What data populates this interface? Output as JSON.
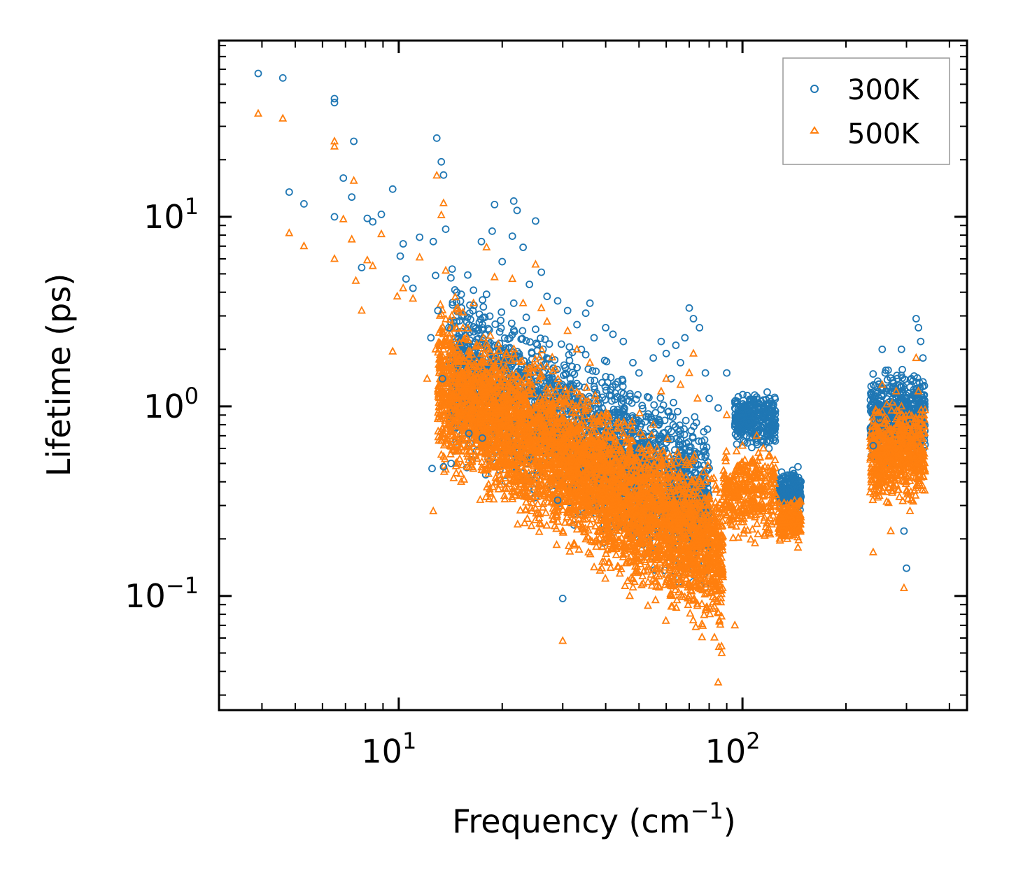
{
  "chart_data": {
    "type": "scatter",
    "xscale": "log",
    "yscale": "log",
    "xlim": [
      3.0,
      450.0
    ],
    "ylim": [
      0.025,
      85.0
    ],
    "xlabel": {
      "main": "Frequency (cm",
      "sup": "−1",
      "close": ")"
    },
    "ylabel": "Lifetime (ps)",
    "x_ticks": [
      {
        "value": 10,
        "base": "10",
        "exp": "1"
      },
      {
        "value": 100,
        "base": "10",
        "exp": "2"
      }
    ],
    "y_ticks": [
      {
        "value": 0.1,
        "base": "10",
        "exp": "−1"
      },
      {
        "value": 1,
        "base": "10",
        "exp": "0"
      },
      {
        "value": 10,
        "base": "10",
        "exp": "1"
      }
    ],
    "legend_position": "top-right",
    "series": [
      {
        "name": "300K",
        "marker": "circle",
        "color": "#1f77b4",
        "points": [
          [
            3.9,
            57
          ],
          [
            4.6,
            54
          ],
          [
            4.8,
            13.5
          ],
          [
            5.3,
            11.7
          ],
          [
            6.5,
            42
          ],
          [
            6.5,
            40
          ],
          [
            6.9,
            16
          ],
          [
            7.3,
            12.7
          ],
          [
            7.4,
            25
          ],
          [
            6.5,
            10
          ],
          [
            8.1,
            9.8
          ],
          [
            8.4,
            9.4
          ],
          [
            8.9,
            10.3
          ],
          [
            9.6,
            14
          ],
          [
            10.3,
            7.2
          ],
          [
            10.1,
            6.2
          ],
          [
            7.8,
            5.4
          ],
          [
            11.5,
            7.8
          ],
          [
            12.9,
            26
          ],
          [
            13.3,
            19.5
          ],
          [
            13.5,
            16.6
          ],
          [
            12.6,
            7.4
          ],
          [
            13.7,
            8.6
          ],
          [
            11.0,
            4.2
          ],
          [
            10.5,
            4.7
          ],
          [
            12.8,
            4.9
          ],
          [
            14.3,
            5.3
          ],
          [
            13.0,
            3.2
          ],
          [
            14.0,
            2.6
          ],
          [
            12.4,
            2.3
          ],
          [
            15.2,
            3.9
          ],
          [
            16.5,
            4.1
          ],
          [
            17.4,
            7.4
          ],
          [
            19.0,
            11.6
          ],
          [
            18.7,
            8.4
          ],
          [
            18.0,
            3.9
          ],
          [
            21.6,
            12.1
          ],
          [
            22.1,
            10.8
          ],
          [
            21.4,
            7.9
          ],
          [
            23.0,
            6.9
          ],
          [
            25.0,
            9.5
          ],
          [
            20.0,
            5.8
          ],
          [
            26.0,
            5.1
          ],
          [
            24.0,
            4.4
          ],
          [
            13.4,
            1.4
          ],
          [
            12.5,
            0.47
          ],
          [
            13.5,
            0.48
          ],
          [
            14.2,
            0.5
          ],
          [
            16.0,
            0.72
          ],
          [
            17.5,
            0.68
          ],
          [
            21.6,
            3.5
          ],
          [
            27.0,
            3.8
          ],
          [
            29.0,
            3.6
          ],
          [
            31.0,
            3.2
          ],
          [
            33.0,
            2.7
          ],
          [
            35.0,
            3.1
          ],
          [
            37.0,
            2.3
          ],
          [
            40.0,
            2.6
          ],
          [
            42.0,
            2.4
          ],
          [
            45.0,
            2.2
          ],
          [
            48.0,
            1.7
          ],
          [
            50.0,
            1.5
          ],
          [
            55.0,
            1.8
          ],
          [
            58.0,
            2.2
          ],
          [
            60.0,
            1.9
          ],
          [
            62.0,
            1.4
          ],
          [
            64.0,
            2.1
          ],
          [
            66.0,
            1.7
          ],
          [
            68.0,
            2.3
          ],
          [
            70.0,
            3.3
          ],
          [
            72.0,
            2.9
          ],
          [
            75.0,
            2.6
          ],
          [
            78.0,
            1.5
          ],
          [
            80.0,
            1.1
          ],
          [
            85.0,
            0.98
          ],
          [
            90.0,
            1.5
          ],
          [
            95.0,
            0.8
          ],
          [
            100.0,
            1.0
          ],
          [
            105.0,
            1.05
          ],
          [
            110.0,
            1.12
          ],
          [
            115.0,
            1.08
          ],
          [
            120.0,
            1.1
          ],
          [
            130.0,
            0.45
          ],
          [
            135.0,
            0.42
          ],
          [
            140.0,
            0.46
          ],
          [
            145.0,
            0.48
          ],
          [
            36.0,
            3.5
          ],
          [
            30.0,
            0.097
          ],
          [
            29.0,
            0.32
          ],
          [
            33.0,
            1.6
          ],
          [
            240.0,
            0.62
          ],
          [
            250.0,
            0.85
          ],
          [
            255.0,
            2.0
          ],
          [
            260.0,
            1.5
          ],
          [
            270.0,
            1.2
          ],
          [
            280.0,
            1.1
          ],
          [
            290.0,
            2.0
          ],
          [
            295.0,
            0.22
          ],
          [
            300.0,
            0.14
          ],
          [
            310.0,
            1.4
          ],
          [
            320.0,
            2.9
          ],
          [
            325.0,
            2.6
          ],
          [
            330.0,
            2.2
          ],
          [
            335.0,
            1.8
          ]
        ]
      },
      {
        "name": "500K",
        "marker": "triangle",
        "color": "#ff7f0e",
        "points": [
          [
            3.9,
            35
          ],
          [
            4.6,
            33
          ],
          [
            4.8,
            8.2
          ],
          [
            5.3,
            7.0
          ],
          [
            6.5,
            25
          ],
          [
            6.5,
            23.5
          ],
          [
            6.9,
            9.7
          ],
          [
            6.5,
            6.0
          ],
          [
            7.4,
            15.5
          ],
          [
            7.3,
            7.6
          ],
          [
            7.5,
            4.6
          ],
          [
            8.1,
            5.9
          ],
          [
            8.4,
            5.5
          ],
          [
            8.9,
            8.1
          ],
          [
            7.8,
            3.2
          ],
          [
            9.6,
            1.95
          ],
          [
            9.9,
            3.8
          ],
          [
            10.3,
            4.2
          ],
          [
            11.0,
            3.7
          ],
          [
            11.5,
            6.1
          ],
          [
            12.9,
            16.5
          ],
          [
            13.3,
            10.2
          ],
          [
            13.5,
            11.8
          ],
          [
            12.8,
            2.0
          ],
          [
            12.1,
            1.4
          ],
          [
            12.6,
            0.28
          ],
          [
            13.0,
            0.86
          ],
          [
            13.7,
            5.2
          ],
          [
            14.4,
            1.0
          ],
          [
            15.0,
            1.8
          ],
          [
            16.5,
            3.5
          ],
          [
            17.4,
            1.9
          ],
          [
            18.0,
            6.9
          ],
          [
            19.0,
            4.8
          ],
          [
            21.4,
            4.7
          ],
          [
            23.0,
            3.5
          ],
          [
            25.0,
            5.6
          ],
          [
            26.0,
            3.3
          ],
          [
            29.0,
            0.35
          ],
          [
            30.0,
            0.058
          ],
          [
            27.0,
            2.8
          ],
          [
            31.0,
            2.5
          ],
          [
            33.0,
            2.0
          ],
          [
            36.0,
            1.7
          ],
          [
            39.0,
            0.14
          ],
          [
            42.0,
            0.18
          ],
          [
            45.0,
            0.25
          ],
          [
            47.0,
            0.1
          ],
          [
            50.0,
            0.6
          ],
          [
            55.0,
            0.8
          ],
          [
            58.0,
            1.2
          ],
          [
            60.0,
            1.4
          ],
          [
            64.0,
            0.5
          ],
          [
            66.0,
            1.3
          ],
          [
            68.0,
            0.15
          ],
          [
            70.0,
            1.5
          ],
          [
            72.0,
            1.9
          ],
          [
            74.0,
            1.1
          ],
          [
            77.0,
            0.45
          ],
          [
            80.0,
            0.3
          ],
          [
            82.0,
            0.12
          ],
          [
            85.0,
            0.035
          ],
          [
            87.0,
            0.05
          ],
          [
            90.0,
            0.9
          ],
          [
            95.0,
            0.07
          ],
          [
            100.0,
            0.62
          ],
          [
            105.0,
            0.3
          ],
          [
            110.0,
            0.7
          ],
          [
            115.0,
            0.6
          ],
          [
            120.0,
            0.55
          ],
          [
            130.0,
            0.26
          ],
          [
            135.0,
            0.2
          ],
          [
            140.0,
            0.22
          ],
          [
            145.0,
            0.18
          ],
          [
            240.0,
            0.17
          ],
          [
            250.0,
            0.6
          ],
          [
            255.0,
            1.3
          ],
          [
            260.0,
            0.85
          ],
          [
            270.0,
            0.22
          ],
          [
            280.0,
            1.2
          ],
          [
            290.0,
            1.0
          ],
          [
            295.0,
            0.11
          ],
          [
            300.0,
            0.4
          ],
          [
            310.0,
            0.7
          ],
          [
            320.0,
            1.8
          ],
          [
            325.0,
            1.2
          ],
          [
            330.0,
            0.9
          ],
          [
            335.0,
            0.55
          ]
        ]
      }
    ],
    "dense_regions": [
      {
        "series": 0,
        "seed": 11,
        "count": 2500,
        "x_range": [
          14,
          80
        ],
        "center": [
          0.7,
          -0.2
        ],
        "slope": -1.0,
        "spread": 0.55
      },
      {
        "series": 0,
        "seed": 12,
        "count": 300,
        "x_range": [
          95,
          125
        ],
        "center": [
          0.85,
          0
        ],
        "slope": 0.0,
        "spread": 0.18
      },
      {
        "series": 0,
        "seed": 13,
        "count": 180,
        "x_range": [
          127,
          148
        ],
        "center": [
          0.36,
          0
        ],
        "slope": 0.0,
        "spread": 0.12
      },
      {
        "series": 0,
        "seed": 14,
        "count": 500,
        "x_range": [
          235,
          340
        ],
        "center": [
          0.9,
          0
        ],
        "slope": 0.0,
        "spread": 0.3
      },
      {
        "series": 1,
        "seed": 21,
        "count": 4200,
        "x_range": [
          13,
          88
        ],
        "center": [
          0.45,
          -0.2
        ],
        "slope": -1.1,
        "spread": 0.55
      },
      {
        "series": 1,
        "seed": 22,
        "count": 350,
        "x_range": [
          88,
          125
        ],
        "center": [
          0.35,
          0
        ],
        "slope": 0.0,
        "spread": 0.3
      },
      {
        "series": 1,
        "seed": 23,
        "count": 200,
        "x_range": [
          127,
          148
        ],
        "center": [
          0.25,
          0
        ],
        "slope": 0.0,
        "spread": 0.14
      },
      {
        "series": 1,
        "seed": 24,
        "count": 600,
        "x_range": [
          235,
          340
        ],
        "center": [
          0.55,
          0
        ],
        "slope": 0.0,
        "spread": 0.32
      }
    ]
  }
}
